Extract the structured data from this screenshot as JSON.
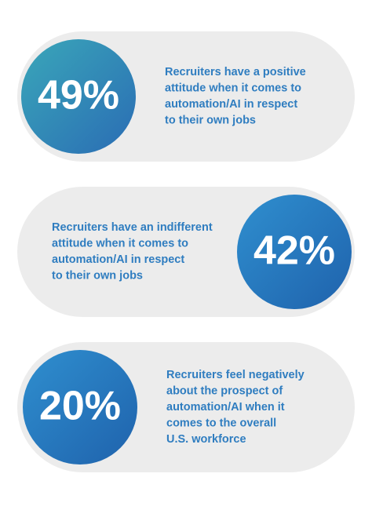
{
  "stats": [
    {
      "value": "49%",
      "lines": [
        "Recruiters have a positive",
        "attitude when it comes to",
        "automation/AI in respect",
        "to their own jobs"
      ]
    },
    {
      "value": "42%",
      "lines": [
        "Recruiters have an indifferent",
        "attitude when it comes to",
        "automation/AI in respect",
        "to their own jobs"
      ]
    },
    {
      "value": "20%",
      "lines": [
        "Recruiters feel negatively",
        "about the prospect of",
        "automation/AI when it",
        "comes to the overall",
        "U.S. workforce"
      ]
    }
  ]
}
